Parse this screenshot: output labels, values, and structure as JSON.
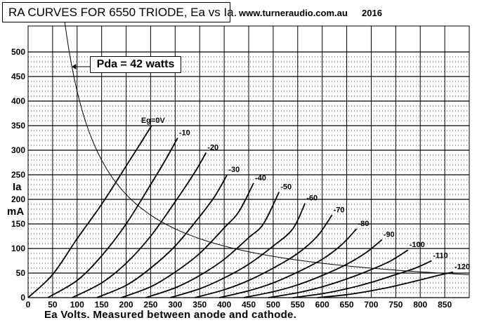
{
  "title": "RA CURVES FOR 6550 TRIODE, Ea vs Ia.",
  "website": "www.turneraudio.com.au",
  "year": "2016",
  "pda_label": "Pda = 42 watts",
  "ylabel_top": "Ia",
  "ylabel_bottom": "mA",
  "xlabel": "Ea Volts. Measured between anode and cathode.",
  "chart_data": {
    "type": "line",
    "title": "RA CURVES FOR 6550 TRIODE, Ea vs Ia.",
    "xlabel": "Ea Volts. Measured between anode and cathode.",
    "ylabel": "Ia mA",
    "xlim": [
      0,
      900
    ],
    "ylim": [
      0,
      500
    ],
    "xticks": [
      0,
      50,
      100,
      150,
      200,
      250,
      300,
      350,
      400,
      450,
      500,
      550,
      600,
      650,
      700,
      750,
      800,
      850
    ],
    "yticks": [
      0,
      50,
      100,
      150,
      200,
      250,
      300,
      350,
      400,
      450,
      500
    ],
    "grid": true,
    "pda_curve": {
      "watts": 42,
      "label": "Pda = 42 watts"
    },
    "series": [
      {
        "name": "Eg=0V",
        "label": "Eg=0V",
        "x": [
          0,
          50,
          100,
          150,
          200,
          230,
          252
        ],
        "y": [
          0,
          47,
          120,
          190,
          268,
          315,
          350
        ]
      },
      {
        "name": "-10",
        "label": "-10",
        "x": [
          40,
          100,
          150,
          200,
          250,
          280,
          305
        ],
        "y": [
          0,
          35,
          85,
          150,
          230,
          280,
          325
        ]
      },
      {
        "name": "-20",
        "label": "-20",
        "x": [
          90,
          150,
          200,
          250,
          300,
          340,
          363
        ],
        "y": [
          0,
          30,
          70,
          125,
          195,
          255,
          295
        ]
      },
      {
        "name": "-30",
        "label": "-30",
        "x": [
          140,
          200,
          250,
          300,
          350,
          380,
          406
        ],
        "y": [
          0,
          25,
          60,
          105,
          165,
          205,
          250
        ]
      },
      {
        "name": "-40",
        "label": "-40",
        "x": [
          190,
          250,
          300,
          350,
          400,
          430,
          460
        ],
        "y": [
          0,
          22,
          52,
          90,
          142,
          175,
          233
        ]
      },
      {
        "name": "-50",
        "label": "-50",
        "x": [
          240,
          300,
          350,
          400,
          450,
          480,
          512
        ],
        "y": [
          0,
          20,
          45,
          78,
          122,
          150,
          215
        ]
      },
      {
        "name": "-60",
        "label": "-60",
        "x": [
          290,
          350,
          400,
          450,
          500,
          540,
          565
        ],
        "y": [
          0,
          18,
          40,
          68,
          105,
          140,
          192
        ]
      },
      {
        "name": "-70",
        "label": "-70",
        "x": [
          340,
          400,
          450,
          500,
          550,
          590,
          620
        ],
        "y": [
          0,
          16,
          35,
          60,
          90,
          125,
          168
        ]
      },
      {
        "name": "-80",
        "label": "-80",
        "x": [
          390,
          450,
          500,
          550,
          600,
          640,
          670
        ],
        "y": [
          0,
          14,
          30,
          52,
          78,
          108,
          140
        ]
      },
      {
        "name": "-90",
        "label": "-90",
        "x": [
          440,
          500,
          550,
          600,
          650,
          690,
          722
        ],
        "y": [
          0,
          12,
          26,
          45,
          68,
          92,
          118
        ]
      },
      {
        "name": "-100",
        "label": "-100",
        "x": [
          490,
          550,
          600,
          650,
          700,
          740,
          775
        ],
        "y": [
          0,
          10,
          22,
          38,
          57,
          75,
          97
        ]
      },
      {
        "name": "-110",
        "label": "-110",
        "x": [
          540,
          600,
          650,
          700,
          750,
          790,
          823
        ],
        "y": [
          0,
          8,
          18,
          31,
          47,
          60,
          75
        ]
      },
      {
        "name": "-120",
        "label": "-120",
        "x": [
          590,
          650,
          700,
          750,
          800,
          840,
          867
        ],
        "y": [
          0,
          6,
          14,
          24,
          36,
          46,
          52
        ]
      }
    ]
  }
}
